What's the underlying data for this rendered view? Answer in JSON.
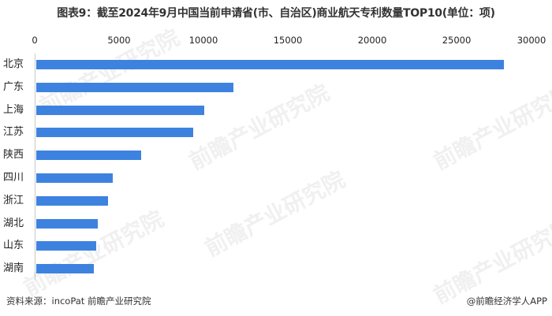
{
  "title": "图表9：截至2024年9月中国当前申请省(市、自治区)商业航天专利数量TOP10(单位：项)",
  "axis": {
    "ticks": [
      "0",
      "5000",
      "10000",
      "15000",
      "20000",
      "25000",
      "30000"
    ]
  },
  "watermark": "前瞻产业研究院",
  "footer": {
    "source": "资料来源：incoPat 前瞻产业研究院",
    "credit": "@前瞻经济学人APP"
  },
  "colors": {
    "bar": "#3e82e0",
    "axis": "#c8c8c8"
  },
  "chart_data": {
    "type": "bar",
    "orientation": "horizontal",
    "title": "图表9：截至2024年9月中国当前申请省(市、自治区)商业航天专利数量TOP10(单位：项)",
    "categories": [
      "北京",
      "广东",
      "上海",
      "江苏",
      "陕西",
      "四川",
      "浙江",
      "湖北",
      "山东",
      "湖南"
    ],
    "values": [
      27700,
      11700,
      9950,
      9300,
      6200,
      4530,
      4250,
      3650,
      3550,
      3400
    ],
    "xlabel": "",
    "ylabel": "",
    "xlim": [
      0,
      30000
    ],
    "grid": false,
    "legend": null,
    "source": "资料来源：incoPat 前瞻产业研究院"
  }
}
